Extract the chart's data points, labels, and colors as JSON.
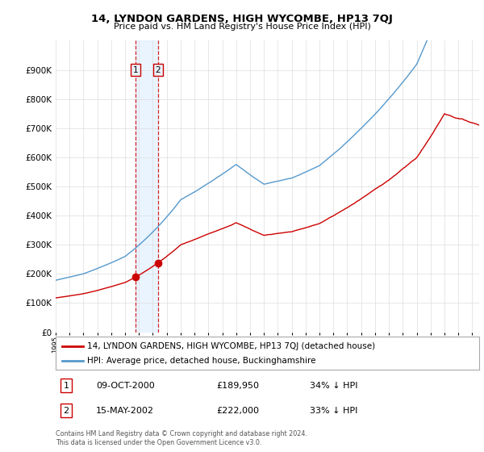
{
  "title": "14, LYNDON GARDENS, HIGH WYCOMBE, HP13 7QJ",
  "subtitle": "Price paid vs. HM Land Registry's House Price Index (HPI)",
  "hpi_label": "HPI: Average price, detached house, Buckinghamshire",
  "property_label": "14, LYNDON GARDENS, HIGH WYCOMBE, HP13 7QJ (detached house)",
  "hpi_color": "#5599cc",
  "property_color": "#cc0000",
  "sale1_date": "09-OCT-2000",
  "sale1_price": "£189,950",
  "sale1_pct": "34% ↓ HPI",
  "sale1_x": 2000.77,
  "sale2_date": "15-MAY-2002",
  "sale2_price": "£222,000",
  "sale2_pct": "33% ↓ HPI",
  "sale2_x": 2002.37,
  "ylim_max": 1000000,
  "footer": "Contains HM Land Registry data © Crown copyright and database right 2024.\nThis data is licensed under the Open Government Licence v3.0.",
  "background_color": "#ffffff",
  "grid_color": "#dddddd",
  "shade_color": "#ddeeff"
}
